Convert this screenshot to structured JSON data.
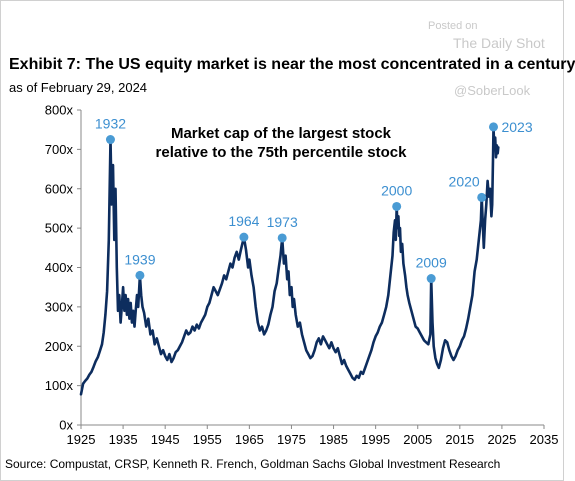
{
  "watermark": {
    "posted": "Posted on",
    "source": "The Daily Shot",
    "handle": "@SoberLook"
  },
  "header": {
    "title": "Exhibit 7: The US equity market is near the most concentrated in a century",
    "subtitle": "as of February 29, 2024"
  },
  "footer": {
    "source": "Source: Compustat, CRSP, Kenneth R. French, Goldman Sachs Global Investment Research"
  },
  "chart_data": {
    "type": "line",
    "title": "Exhibit 7: The US equity market is near the most concentrated in a century",
    "subtitle": "as of February 29, 2024",
    "annotation": [
      "Market cap of the largest stock",
      "relative to the 75th percentile stock"
    ],
    "xlabel": "",
    "ylabel": "",
    "xlim": [
      1925,
      2035
    ],
    "ylim": [
      0,
      800
    ],
    "x_ticks": [
      1925,
      1935,
      1945,
      1955,
      1965,
      1975,
      1985,
      1995,
      2005,
      2015,
      2025,
      2035
    ],
    "y_ticks": [
      0,
      100,
      200,
      300,
      400,
      500,
      600,
      700,
      800
    ],
    "y_tick_labels": [
      "0x",
      "100x",
      "200x",
      "300x",
      "400x",
      "500x",
      "600x",
      "700x",
      "800x"
    ],
    "grid": false,
    "legend": "none",
    "line_color": "#0d2d5e",
    "marker_color": "#4a9bd4",
    "label_color": "#3c8fd0",
    "peaks": [
      {
        "label": "1932",
        "x": 1932.0,
        "y": 725
      },
      {
        "label": "1939",
        "x": 1939.0,
        "y": 380
      },
      {
        "label": "1964",
        "x": 1963.7,
        "y": 477
      },
      {
        "label": "1973",
        "x": 1972.8,
        "y": 475
      },
      {
        "label": "2000",
        "x": 2000.0,
        "y": 555
      },
      {
        "label": "2009",
        "x": 2008.2,
        "y": 372
      },
      {
        "label": "2020",
        "x": 2020.2,
        "y": 578
      },
      {
        "label": "2023",
        "x": 2023.0,
        "y": 757
      }
    ],
    "series": [
      {
        "values": [
          [
            1925.0,
            78
          ],
          [
            1925.5,
            105
          ],
          [
            1926.0,
            112
          ],
          [
            1926.5,
            118
          ],
          [
            1927.0,
            128
          ],
          [
            1927.5,
            135
          ],
          [
            1928.0,
            148
          ],
          [
            1928.5,
            162
          ],
          [
            1929.0,
            172
          ],
          [
            1929.5,
            188
          ],
          [
            1930.0,
            205
          ],
          [
            1930.4,
            235
          ],
          [
            1930.8,
            280
          ],
          [
            1931.2,
            340
          ],
          [
            1931.6,
            470
          ],
          [
            1932.0,
            725
          ],
          [
            1932.3,
            560
          ],
          [
            1932.6,
            660
          ],
          [
            1932.9,
            470
          ],
          [
            1933.2,
            600
          ],
          [
            1933.5,
            400
          ],
          [
            1933.8,
            290
          ],
          [
            1934.1,
            330
          ],
          [
            1934.4,
            260
          ],
          [
            1934.7,
            300
          ],
          [
            1935.0,
            350
          ],
          [
            1935.3,
            290
          ],
          [
            1935.6,
            330
          ],
          [
            1935.9,
            280
          ],
          [
            1936.2,
            320
          ],
          [
            1936.5,
            270
          ],
          [
            1936.8,
            310
          ],
          [
            1937.1,
            260
          ],
          [
            1937.4,
            290
          ],
          [
            1937.7,
            250
          ],
          [
            1938.0,
            290
          ],
          [
            1938.3,
            330
          ],
          [
            1938.6,
            300
          ],
          [
            1939.0,
            380
          ],
          [
            1939.3,
            330
          ],
          [
            1939.6,
            300
          ],
          [
            1940.0,
            285
          ],
          [
            1940.5,
            250
          ],
          [
            1941.0,
            270
          ],
          [
            1941.5,
            230
          ],
          [
            1942.0,
            240
          ],
          [
            1942.5,
            205
          ],
          [
            1943.0,
            220
          ],
          [
            1943.5,
            200
          ],
          [
            1944.0,
            180
          ],
          [
            1944.5,
            190
          ],
          [
            1945.0,
            175
          ],
          [
            1945.5,
            165
          ],
          [
            1946.0,
            180
          ],
          [
            1946.5,
            160
          ],
          [
            1947.0,
            170
          ],
          [
            1947.5,
            185
          ],
          [
            1948.0,
            190
          ],
          [
            1948.5,
            200
          ],
          [
            1949.0,
            210
          ],
          [
            1949.5,
            225
          ],
          [
            1950.0,
            240
          ],
          [
            1950.5,
            230
          ],
          [
            1951.0,
            235
          ],
          [
            1951.5,
            250
          ],
          [
            1952.0,
            240
          ],
          [
            1952.5,
            255
          ],
          [
            1953.0,
            245
          ],
          [
            1953.5,
            260
          ],
          [
            1954.0,
            270
          ],
          [
            1954.5,
            280
          ],
          [
            1955.0,
            300
          ],
          [
            1955.5,
            310
          ],
          [
            1956.0,
            330
          ],
          [
            1956.5,
            350
          ],
          [
            1957.0,
            340
          ],
          [
            1957.5,
            330
          ],
          [
            1958.0,
            345
          ],
          [
            1958.5,
            360
          ],
          [
            1959.0,
            380
          ],
          [
            1959.5,
            370
          ],
          [
            1960.0,
            390
          ],
          [
            1960.5,
            410
          ],
          [
            1961.0,
            400
          ],
          [
            1961.5,
            425
          ],
          [
            1962.0,
            440
          ],
          [
            1962.5,
            420
          ],
          [
            1963.0,
            445
          ],
          [
            1963.7,
            477
          ],
          [
            1964.2,
            445
          ],
          [
            1964.7,
            400
          ],
          [
            1965.0,
            420
          ],
          [
            1965.5,
            380
          ],
          [
            1966.0,
            350
          ],
          [
            1966.5,
            300
          ],
          [
            1967.0,
            260
          ],
          [
            1967.5,
            240
          ],
          [
            1968.0,
            250
          ],
          [
            1968.5,
            230
          ],
          [
            1969.0,
            240
          ],
          [
            1969.5,
            255
          ],
          [
            1970.0,
            280
          ],
          [
            1970.5,
            300
          ],
          [
            1971.0,
            340
          ],
          [
            1971.5,
            360
          ],
          [
            1972.0,
            400
          ],
          [
            1972.4,
            430
          ],
          [
            1972.8,
            475
          ],
          [
            1973.2,
            410
          ],
          [
            1973.6,
            430
          ],
          [
            1974.0,
            370
          ],
          [
            1974.3,
            390
          ],
          [
            1974.6,
            330
          ],
          [
            1975.0,
            350
          ],
          [
            1975.3,
            300
          ],
          [
            1975.6,
            320
          ],
          [
            1976.0,
            280
          ],
          [
            1976.5,
            250
          ],
          [
            1977.0,
            260
          ],
          [
            1977.5,
            230
          ],
          [
            1978.0,
            210
          ],
          [
            1978.5,
            190
          ],
          [
            1979.0,
            180
          ],
          [
            1979.5,
            170
          ],
          [
            1980.0,
            175
          ],
          [
            1980.5,
            190
          ],
          [
            1981.0,
            210
          ],
          [
            1981.5,
            220
          ],
          [
            1982.0,
            205
          ],
          [
            1982.5,
            225
          ],
          [
            1983.0,
            215
          ],
          [
            1983.5,
            205
          ],
          [
            1984.0,
            195
          ],
          [
            1984.5,
            210
          ],
          [
            1985.0,
            195
          ],
          [
            1985.5,
            185
          ],
          [
            1986.0,
            195
          ],
          [
            1986.5,
            175
          ],
          [
            1987.0,
            155
          ],
          [
            1987.5,
            165
          ],
          [
            1988.0,
            150
          ],
          [
            1988.5,
            140
          ],
          [
            1989.0,
            130
          ],
          [
            1989.5,
            120
          ],
          [
            1990.0,
            115
          ],
          [
            1990.5,
            125
          ],
          [
            1991.0,
            120
          ],
          [
            1991.5,
            135
          ],
          [
            1992.0,
            130
          ],
          [
            1992.5,
            145
          ],
          [
            1993.0,
            160
          ],
          [
            1993.5,
            175
          ],
          [
            1994.0,
            190
          ],
          [
            1994.5,
            210
          ],
          [
            1995.0,
            225
          ],
          [
            1995.5,
            235
          ],
          [
            1996.0,
            250
          ],
          [
            1996.5,
            260
          ],
          [
            1997.0,
            280
          ],
          [
            1997.5,
            300
          ],
          [
            1998.0,
            330
          ],
          [
            1998.5,
            380
          ],
          [
            1999.0,
            430
          ],
          [
            1999.3,
            490
          ],
          [
            1999.6,
            520
          ],
          [
            1999.8,
            470
          ],
          [
            2000.0,
            555
          ],
          [
            2000.2,
            500
          ],
          [
            2000.4,
            530
          ],
          [
            2000.6,
            480
          ],
          [
            2000.8,
            500
          ],
          [
            2001.0,
            440
          ],
          [
            2001.3,
            460
          ],
          [
            2001.6,
            410
          ],
          [
            2002.0,
            380
          ],
          [
            2002.3,
            350
          ],
          [
            2002.6,
            330
          ],
          [
            2003.0,
            310
          ],
          [
            2003.5,
            290
          ],
          [
            2004.0,
            270
          ],
          [
            2004.5,
            250
          ],
          [
            2005.0,
            245
          ],
          [
            2005.5,
            235
          ],
          [
            2006.0,
            225
          ],
          [
            2006.5,
            215
          ],
          [
            2007.0,
            210
          ],
          [
            2007.5,
            205
          ],
          [
            2008.0,
            230
          ],
          [
            2008.2,
            372
          ],
          [
            2008.5,
            260
          ],
          [
            2008.8,
            200
          ],
          [
            2009.2,
            170
          ],
          [
            2009.6,
            155
          ],
          [
            2010.0,
            145
          ],
          [
            2010.5,
            165
          ],
          [
            2011.0,
            195
          ],
          [
            2011.5,
            215
          ],
          [
            2012.0,
            210
          ],
          [
            2012.5,
            190
          ],
          [
            2013.0,
            175
          ],
          [
            2013.5,
            165
          ],
          [
            2014.0,
            175
          ],
          [
            2014.5,
            190
          ],
          [
            2015.0,
            200
          ],
          [
            2015.5,
            215
          ],
          [
            2016.0,
            225
          ],
          [
            2016.5,
            245
          ],
          [
            2017.0,
            270
          ],
          [
            2017.5,
            300
          ],
          [
            2018.0,
            330
          ],
          [
            2018.5,
            390
          ],
          [
            2019.0,
            420
          ],
          [
            2019.5,
            470
          ],
          [
            2020.0,
            520
          ],
          [
            2020.2,
            578
          ],
          [
            2020.4,
            530
          ],
          [
            2020.7,
            450
          ],
          [
            2021.0,
            520
          ],
          [
            2021.3,
            560
          ],
          [
            2021.6,
            620
          ],
          [
            2021.9,
            580
          ],
          [
            2022.2,
            600
          ],
          [
            2022.5,
            530
          ],
          [
            2022.7,
            560
          ],
          [
            2022.9,
            690
          ],
          [
            2023.0,
            757
          ],
          [
            2023.2,
            700
          ],
          [
            2023.4,
            730
          ],
          [
            2023.6,
            680
          ],
          [
            2023.8,
            710
          ],
          [
            2024.0,
            690
          ],
          [
            2024.15,
            705
          ]
        ]
      }
    ]
  }
}
